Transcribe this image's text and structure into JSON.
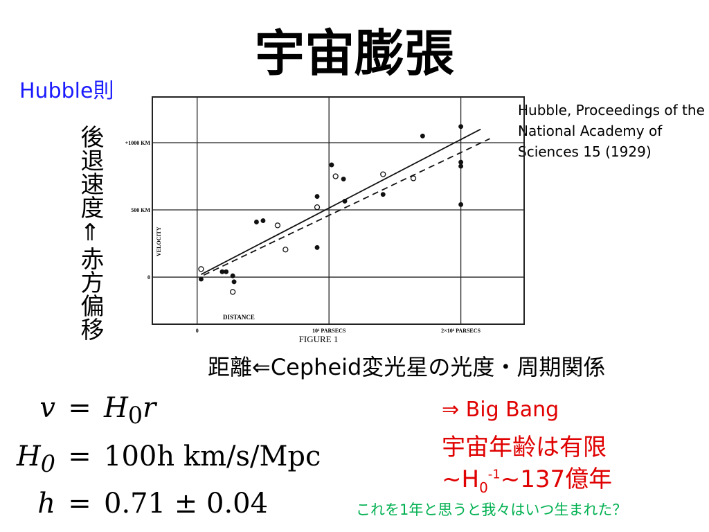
{
  "header": {
    "title": "宇宙膨張",
    "subtitle": "Hubble則"
  },
  "vertical_label": "後退速度⇑赤方偏移",
  "citation": "Hubble, Proceedings of the National Academy of Sciences 15 (1929)",
  "distance_note": "距離⇐Cepheid変光星の光度・周期関係",
  "figure": {
    "type": "scatter",
    "caption": "FIGURE 1",
    "xlabel": "DISTANCE",
    "ylabel": "VELOCITY",
    "xlim": [
      -0.34,
      2.48
    ],
    "ylim": [
      -350,
      1340
    ],
    "xticks": [
      {
        "value": 0,
        "label": "0"
      },
      {
        "value": 1,
        "label": "10⁶ PARSECS"
      },
      {
        "value": 2,
        "label": "2×10⁶ PARSECS"
      }
    ],
    "yticks": [
      {
        "value": 1000,
        "label": "+1000 KM"
      },
      {
        "value": 500,
        "label": "500 KM"
      },
      {
        "value": 0,
        "label": "0"
      }
    ],
    "series": [
      {
        "name": "filled",
        "x": [
          0.03,
          0.19,
          0.22,
          0.27,
          0.28,
          0.45,
          0.5,
          0.91,
          0.91,
          1.02,
          1.11,
          1.12,
          1.41,
          1.71,
          2.0,
          2.0,
          2.0,
          2.0
        ],
        "values": [
          -15,
          40,
          40,
          10,
          -35,
          410,
          420,
          600,
          220,
          835,
          730,
          565,
          615,
          1050,
          1120,
          855,
          825,
          540
        ]
      },
      {
        "name": "open",
        "x": [
          0.03,
          0.27,
          0.61,
          0.67,
          0.91,
          1.05,
          1.41,
          1.64
        ],
        "values": [
          60,
          -110,
          385,
          205,
          520,
          750,
          765,
          735
        ]
      }
    ],
    "fits": [
      {
        "style": "solid",
        "x": [
          0.03,
          2.15
        ],
        "values": [
          20,
          1100
        ]
      },
      {
        "style": "dashed",
        "x": [
          0.05,
          2.22
        ],
        "values": [
          15,
          1030
        ]
      }
    ]
  },
  "equations": [
    {
      "lhs": "v",
      "rel": "=",
      "rhs_base": "H",
      "rhs_sub": "0",
      "rhs_rest": "r"
    },
    {
      "lhs": "H",
      "lhs_sub": "0",
      "rel": "=",
      "rhs_base": "100h km/s/Mpc"
    },
    {
      "lhs": "h",
      "rel": "=",
      "rhs_base": "0.71 ± 0.04"
    }
  ],
  "conclusion": {
    "line1": "⇒ Big Bang",
    "line2": "宇宙年齢は有限",
    "prefix": "~H",
    "sub": "0",
    "sup": "-1",
    "suffix": "~137億年"
  },
  "question": "これを1年と思うと我々はいつ生まれた？"
}
